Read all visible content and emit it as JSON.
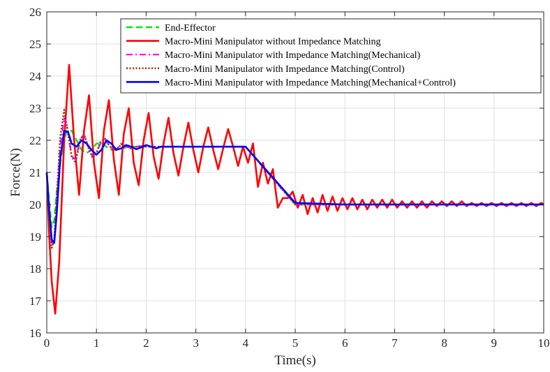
{
  "chart_data": {
    "type": "line",
    "title": "",
    "xlabel": "Time(s)",
    "ylabel": "Force(N)",
    "xlim": [
      0,
      10
    ],
    "ylim": [
      16,
      26
    ],
    "xticks": [
      0,
      1,
      2,
      3,
      4,
      5,
      6,
      7,
      8,
      9,
      10
    ],
    "yticks": [
      16,
      17,
      18,
      19,
      20,
      21,
      22,
      23,
      24,
      25,
      26
    ],
    "grid": true,
    "legend_position": "top-right",
    "series": [
      {
        "name": "End-Effector",
        "color": "#00e600",
        "dash": "dashed",
        "x": [
          0,
          0.05,
          0.1,
          0.15,
          0.2,
          0.3,
          0.4,
          0.5,
          0.6,
          0.7,
          0.8,
          0.9,
          1.0,
          1.1,
          1.2,
          1.3,
          1.4,
          1.5,
          1.7,
          2.0,
          2.5,
          3.0,
          3.5,
          4.0,
          5.0,
          6.0,
          7.0,
          8.0,
          9.0,
          10.0
        ],
        "y": [
          21.0,
          20.1,
          19.3,
          19.5,
          20.4,
          21.6,
          22.3,
          22.3,
          22.0,
          21.7,
          21.6,
          21.7,
          21.9,
          21.9,
          21.8,
          21.7,
          21.7,
          21.75,
          21.8,
          21.8,
          21.8,
          21.8,
          21.8,
          21.8,
          20.0,
          20.0,
          20.0,
          20.0,
          20.0,
          20.0
        ]
      },
      {
        "name": "Macro-Mini Manipulator without  Impedance Matching",
        "color": "#ff0000",
        "dash": "solid",
        "x": [
          0,
          0.05,
          0.1,
          0.17,
          0.25,
          0.35,
          0.45,
          0.55,
          0.65,
          0.75,
          0.85,
          0.95,
          1.05,
          1.15,
          1.25,
          1.35,
          1.45,
          1.55,
          1.65,
          1.75,
          1.85,
          1.95,
          2.05,
          2.15,
          2.25,
          2.35,
          2.45,
          2.55,
          2.65,
          2.75,
          2.85,
          2.95,
          3.05,
          3.15,
          3.25,
          3.35,
          3.45,
          3.55,
          3.65,
          3.75,
          3.85,
          3.95,
          4.05,
          4.15,
          4.25,
          4.35,
          4.45,
          4.55,
          4.65,
          4.75,
          4.85,
          4.95,
          5.05,
          5.15,
          5.25,
          5.35,
          5.45,
          5.55,
          5.65,
          5.75,
          5.85,
          5.95,
          6.05,
          6.15,
          6.25,
          6.35,
          6.45,
          6.55,
          6.65,
          6.75,
          6.85,
          6.95,
          7.05,
          7.15,
          7.25,
          7.35,
          7.45,
          7.55,
          7.65,
          7.75,
          7.85,
          7.95,
          8.05,
          8.15,
          8.25,
          8.35,
          8.45,
          8.55,
          8.65,
          8.75,
          8.85,
          8.95,
          9.05,
          9.15,
          9.25,
          9.35,
          9.45,
          9.55,
          9.65,
          9.75,
          9.85,
          9.95,
          10.0
        ],
        "y": [
          21.0,
          19.0,
          17.6,
          16.6,
          18.2,
          22.0,
          24.35,
          22.0,
          20.3,
          22.3,
          23.4,
          21.3,
          20.2,
          22.3,
          23.25,
          21.4,
          20.3,
          22.2,
          23.0,
          21.3,
          20.6,
          22.0,
          22.85,
          21.5,
          20.8,
          21.9,
          22.7,
          21.6,
          20.9,
          21.8,
          22.55,
          21.7,
          21.0,
          21.8,
          22.4,
          21.7,
          21.1,
          21.75,
          22.35,
          21.8,
          21.2,
          21.8,
          21.3,
          21.9,
          20.55,
          21.3,
          20.65,
          21.1,
          19.9,
          20.2,
          20.2,
          20.4,
          19.9,
          20.3,
          19.7,
          20.2,
          19.75,
          20.3,
          19.8,
          20.25,
          19.8,
          20.2,
          19.85,
          20.2,
          19.85,
          20.15,
          19.85,
          20.15,
          19.9,
          20.15,
          19.9,
          20.15,
          19.9,
          20.1,
          19.9,
          20.1,
          19.9,
          20.1,
          19.9,
          20.1,
          19.95,
          20.1,
          19.95,
          20.1,
          19.95,
          20.1,
          19.95,
          20.05,
          19.95,
          20.05,
          19.95,
          20.05,
          19.95,
          20.05,
          19.95,
          20.05,
          19.95,
          20.05,
          19.95,
          20.05,
          19.95,
          20.05,
          20.0
        ]
      },
      {
        "name": "Macro-Mini Manipulator with  Impedance Matching(Mechanical)",
        "color": "#ff00ff",
        "dash": "dashdot",
        "x": [
          0,
          0.05,
          0.1,
          0.15,
          0.2,
          0.27,
          0.35,
          0.43,
          0.5,
          0.58,
          0.67,
          0.75,
          0.83,
          0.92,
          1.0,
          1.08,
          1.17,
          1.25,
          1.33,
          1.42,
          1.5,
          1.6,
          1.7,
          1.8,
          1.9,
          2.0,
          2.2,
          2.5,
          3.0,
          3.5,
          4.0,
          5.0,
          6.0,
          7.0,
          8.0,
          9.0,
          10.0
        ],
        "y": [
          21.0,
          19.8,
          18.8,
          18.8,
          20.0,
          21.8,
          22.7,
          22.3,
          21.5,
          21.4,
          22.0,
          22.2,
          21.8,
          21.5,
          21.6,
          21.9,
          22.05,
          21.85,
          21.7,
          21.75,
          21.9,
          21.8,
          21.75,
          21.8,
          21.82,
          21.8,
          21.8,
          21.8,
          21.8,
          21.8,
          21.8,
          20.0,
          20.0,
          20.0,
          20.0,
          20.0,
          20.0
        ]
      },
      {
        "name": "Macro-Mini Manipulator with  Impedance Matching(Control)",
        "color": "#a0300a",
        "dash": "dotted",
        "x": [
          0,
          0.05,
          0.1,
          0.15,
          0.2,
          0.27,
          0.35,
          0.43,
          0.5,
          0.58,
          0.67,
          0.75,
          0.83,
          0.92,
          1.0,
          1.08,
          1.17,
          1.25,
          1.33,
          1.42,
          1.5,
          1.6,
          1.7,
          1.8,
          1.9,
          2.0,
          2.2,
          2.5,
          3.0,
          3.5,
          4.0,
          5.0,
          6.0,
          7.0,
          8.0,
          9.0,
          10.0
        ],
        "y": [
          21.0,
          19.6,
          18.65,
          18.9,
          20.2,
          22.1,
          22.95,
          22.2,
          21.5,
          21.3,
          22.0,
          22.2,
          21.8,
          21.45,
          21.6,
          21.95,
          22.05,
          21.85,
          21.7,
          21.72,
          21.88,
          21.82,
          21.74,
          21.8,
          21.82,
          21.8,
          21.8,
          21.8,
          21.8,
          21.8,
          21.8,
          20.0,
          20.0,
          20.0,
          20.0,
          20.0,
          20.0
        ]
      },
      {
        "name": "Macro-Mini Manipulator with  Impedance Matching(Mechanical+Control)",
        "color": "#0000ff",
        "dash": "solid",
        "x": [
          0,
          0.05,
          0.1,
          0.15,
          0.2,
          0.27,
          0.35,
          0.43,
          0.5,
          0.6,
          0.7,
          0.8,
          0.9,
          1.0,
          1.1,
          1.2,
          1.3,
          1.4,
          1.5,
          1.6,
          1.7,
          1.8,
          1.9,
          2.0,
          2.1,
          2.2,
          2.3,
          2.5,
          3.0,
          3.5,
          4.0,
          5.0,
          6.0,
          7.0,
          8.0,
          9.0,
          10.0
        ],
        "y": [
          21.0,
          19.8,
          18.9,
          18.8,
          19.7,
          21.4,
          22.3,
          22.25,
          21.9,
          21.8,
          22.0,
          21.9,
          21.7,
          21.55,
          21.7,
          22.0,
          21.9,
          21.7,
          21.75,
          21.85,
          21.8,
          21.72,
          21.78,
          21.85,
          21.8,
          21.75,
          21.8,
          21.8,
          21.8,
          21.8,
          21.8,
          20.05,
          20.0,
          20.0,
          20.0,
          20.0,
          20.0
        ]
      }
    ]
  }
}
